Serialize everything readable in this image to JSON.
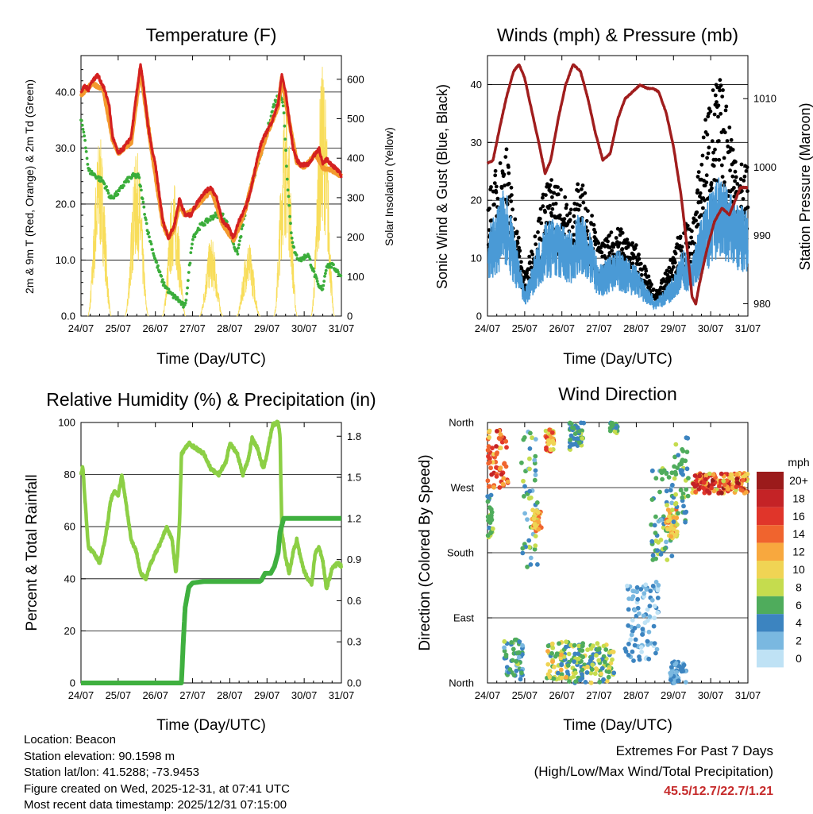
{
  "x_ticks": [
    "24/07",
    "25/07",
    "26/07",
    "27/07",
    "28/07",
    "29/07",
    "30/07",
    "31/07"
  ],
  "x_label": "Time (Day/UTC)",
  "colors": {
    "t2m": "#d42020",
    "t9m": "#f39a2e",
    "td": "#3aad3a",
    "solar": "#f8dd5a",
    "wind": "#4a9ad6",
    "gust": "#000000",
    "pressure": "#a01d1d",
    "rh": "#8ccf45",
    "precip": "#3fb03f"
  },
  "chart_data": [
    {
      "type": "line",
      "title": "Temperature (F)",
      "ylabel": "2m & 9m T (Red, Orange) & 2m Td (Green)",
      "y2label": "Solar Insolation (Yellow)",
      "ylim": [
        0,
        46.5
      ],
      "y_ticks": [
        "0.0",
        "10.0",
        "20.0",
        "30.0",
        "40.0"
      ],
      "y2lim": [
        0,
        660
      ],
      "y2_ticks": [
        "0",
        "100",
        "200",
        "300",
        "400",
        "500",
        "600"
      ],
      "xlim": [
        0,
        7
      ],
      "series": [
        {
          "name": "2m T",
          "x": [
            0,
            0.1,
            0.2,
            0.3,
            0.45,
            0.6,
            0.75,
            0.85,
            1.0,
            1.15,
            1.35,
            1.5,
            1.6,
            1.7,
            1.8,
            1.9,
            2.0,
            2.1,
            2.2,
            2.35,
            2.5,
            2.65,
            2.8,
            2.95,
            3.1,
            3.3,
            3.5,
            3.65,
            3.8,
            3.95,
            4.1,
            4.25,
            4.4,
            4.55,
            4.7,
            4.85,
            5.0,
            5.15,
            5.3,
            5.4,
            5.5,
            5.6,
            5.7,
            5.8,
            5.9,
            6.0,
            6.1,
            6.2,
            6.3,
            6.4,
            6.5,
            6.6,
            6.75,
            6.9,
            7.0
          ],
          "y": [
            40,
            41,
            40.5,
            42,
            43,
            41,
            38,
            32,
            29,
            30,
            32,
            40,
            45,
            40,
            34,
            30,
            27,
            22,
            17,
            14,
            16,
            21,
            18,
            18,
            20,
            22,
            23,
            21,
            17,
            16,
            14,
            17,
            19,
            22,
            27,
            31,
            33,
            35,
            38,
            43,
            40,
            35,
            30,
            28,
            27,
            27,
            27,
            28,
            29,
            30,
            27,
            28,
            27,
            26,
            25
          ]
        },
        {
          "name": "9m T",
          "x": [
            0,
            0.3,
            0.6,
            0.85,
            1.0,
            1.35,
            1.6,
            1.9,
            2.2,
            2.35,
            2.5,
            2.65,
            2.8,
            3.1,
            3.5,
            3.8,
            4.1,
            4.4,
            4.7,
            5.0,
            5.3,
            5.4,
            5.6,
            5.8,
            6.0,
            6.3,
            6.5,
            6.75,
            7.0
          ],
          "y": [
            39.5,
            41.5,
            40.5,
            31.5,
            29,
            31,
            44,
            29.5,
            16.5,
            14,
            15.5,
            20,
            18,
            19.5,
            22.5,
            16.5,
            13.5,
            18.5,
            26.5,
            32.5,
            37.5,
            42.5,
            34.5,
            27.5,
            26.5,
            29,
            26.5,
            26,
            25
          ]
        },
        {
          "name": "2m Td",
          "x": [
            0,
            0.1,
            0.2,
            0.4,
            0.6,
            0.8,
            1.0,
            1.2,
            1.4,
            1.55,
            1.65,
            1.8,
            2.0,
            2.2,
            2.4,
            2.6,
            2.8,
            3.0,
            3.2,
            3.4,
            3.6,
            3.8,
            3.9,
            4.0,
            4.2,
            4.4,
            4.6,
            4.8,
            5.0,
            5.2,
            5.35,
            5.45,
            5.55,
            5.65,
            5.75,
            5.9,
            6.1,
            6.25,
            6.4,
            6.5,
            6.6,
            6.75,
            6.9,
            7.0
          ],
          "y": [
            35,
            32,
            26,
            25,
            24,
            21,
            22,
            24,
            25,
            25,
            21,
            15,
            10,
            6,
            4,
            3,
            1.5,
            14,
            16,
            17,
            18,
            18,
            17,
            15,
            11,
            18,
            24,
            28,
            33,
            38,
            40,
            37,
            24,
            15,
            11,
            10,
            11,
            8,
            5,
            5,
            9,
            9,
            8,
            7
          ]
        }
      ],
      "solar": {
        "name": "Solar Insolation",
        "peaks": [
          [
            0.5,
            460
          ],
          [
            1.5,
            420
          ],
          [
            2.5,
            340
          ],
          [
            3.5,
            200
          ],
          [
            4.5,
            190
          ],
          [
            5.5,
            560
          ],
          [
            6.5,
            640
          ]
        ]
      }
    },
    {
      "type": "line",
      "title": "Winds (mph) & Pressure (mb)",
      "ylabel": "Sonic Wind & Gust (Blue, Black)",
      "y2label": "Station Pressure (Maroon)",
      "ylim": [
        0,
        45
      ],
      "y_ticks": [
        "0",
        "10",
        "20",
        "30",
        "40"
      ],
      "y2lim": [
        978.2,
        1016.3
      ],
      "y2_ticks": [
        "980",
        "990",
        "1000",
        "1010"
      ],
      "xlim": [
        0,
        7
      ],
      "series": [
        {
          "name": "Sonic Wind",
          "x": [
            0,
            0.25,
            0.5,
            0.75,
            1.0,
            1.25,
            1.5,
            1.75,
            2.0,
            2.25,
            2.5,
            2.75,
            3.0,
            3.25,
            3.5,
            3.75,
            4.0,
            4.25,
            4.5,
            4.75,
            5.0,
            5.25,
            5.5,
            5.75,
            6.0,
            6.25,
            6.5,
            6.75,
            7.0
          ],
          "y": [
            10,
            13,
            16,
            9,
            3,
            7,
            11,
            12,
            11,
            10,
            13,
            10,
            6,
            7,
            8,
            7,
            6,
            4,
            2,
            3,
            5,
            8,
            7,
            12,
            15,
            17,
            15,
            13,
            14
          ]
        },
        {
          "name": "Gust",
          "x": [
            0,
            0.25,
            0.5,
            0.75,
            1.0,
            1.25,
            1.5,
            1.75,
            2.0,
            2.25,
            2.5,
            2.75,
            3.0,
            3.25,
            3.5,
            3.75,
            4.0,
            4.25,
            4.5,
            4.75,
            5.0,
            5.25,
            5.5,
            5.75,
            6.0,
            6.25,
            6.5,
            6.75,
            7.0
          ],
          "y": [
            15,
            19,
            22,
            13,
            5,
            10,
            16,
            18,
            16,
            14,
            18,
            14,
            9,
            10,
            12,
            10,
            9,
            6,
            3,
            5,
            8,
            12,
            11,
            22,
            29,
            30,
            26,
            20,
            19
          ]
        },
        {
          "name": "Station Pressure",
          "x": [
            0,
            0.15,
            0.3,
            0.5,
            0.7,
            0.85,
            1.0,
            1.2,
            1.4,
            1.55,
            1.7,
            1.9,
            2.1,
            2.3,
            2.5,
            2.7,
            2.9,
            3.1,
            3.3,
            3.5,
            3.7,
            3.9,
            4.1,
            4.3,
            4.45,
            4.6,
            4.8,
            5.0,
            5.2,
            5.35,
            5.5,
            5.6,
            5.7,
            5.9,
            6.1,
            6.3,
            6.5,
            6.65,
            6.8,
            7.0
          ],
          "y": [
            1000.5,
            1001,
            1005,
            1010,
            1014,
            1015,
            1013,
            1008,
            1003,
            999,
            1001,
            1007,
            1012,
            1015,
            1014,
            1010,
            1005,
            1001,
            1002,
            1007,
            1010,
            1011,
            1012,
            1011.5,
            1011.5,
            1011,
            1008,
            1003,
            996,
            989,
            981,
            980,
            983,
            988,
            992,
            994,
            993,
            995,
            997,
            997
          ]
        }
      ]
    },
    {
      "type": "line",
      "title": "Relative Humidity (%) & Precipitation (in)",
      "ylabel": "Percent & Total Rainfall",
      "ylim": [
        0,
        100
      ],
      "y_ticks": [
        "0",
        "20",
        "40",
        "60",
        "80",
        "100"
      ],
      "y2lim": [
        0,
        1.9
      ],
      "y2_ticks": [
        "0.0",
        "0.3",
        "0.6",
        "0.9",
        "1.2",
        "1.5",
        "1.8"
      ],
      "xlim": [
        0,
        7
      ],
      "series": [
        {
          "name": "Relative Humidity",
          "x": [
            0,
            0.05,
            0.1,
            0.2,
            0.35,
            0.5,
            0.65,
            0.8,
            0.9,
            1.0,
            1.1,
            1.2,
            1.35,
            1.5,
            1.6,
            1.75,
            1.85,
            2.0,
            2.15,
            2.3,
            2.45,
            2.55,
            2.6,
            2.65,
            2.7,
            2.9,
            3.1,
            3.3,
            3.5,
            3.7,
            3.9,
            4.0,
            4.2,
            4.35,
            4.5,
            4.6,
            4.75,
            4.9,
            5.0,
            5.15,
            5.3,
            5.35,
            5.4,
            5.5,
            5.6,
            5.7,
            5.8,
            5.9,
            6.0,
            6.1,
            6.2,
            6.3,
            6.4,
            6.5,
            6.6,
            6.75,
            6.9,
            7.0
          ],
          "y": [
            80,
            83,
            72,
            52,
            50,
            46,
            55,
            70,
            74,
            72,
            80,
            70,
            55,
            50,
            42,
            40,
            45,
            50,
            54,
            60,
            55,
            42,
            50,
            62,
            88,
            92,
            90,
            88,
            82,
            80,
            85,
            92,
            88,
            80,
            86,
            94,
            90,
            82,
            88,
            99,
            100,
            95,
            58,
            48,
            42,
            50,
            55,
            48,
            43,
            40,
            38,
            50,
            52,
            47,
            36,
            44,
            46,
            45
          ]
        },
        {
          "name": "Total Precipitation",
          "x": [
            0,
            2.7,
            2.75,
            2.8,
            2.9,
            3.0,
            3.3,
            3.6,
            4.0,
            4.4,
            4.8,
            4.85,
            4.95,
            5.1,
            5.2,
            5.3,
            5.35,
            5.45,
            5.6,
            6.0,
            6.5,
            7.0
          ],
          "y": [
            0,
            0,
            0.3,
            0.55,
            0.7,
            0.73,
            0.74,
            0.74,
            0.74,
            0.74,
            0.74,
            0.75,
            0.8,
            0.8,
            0.85,
            0.95,
            1.1,
            1.2,
            1.2,
            1.2,
            1.2,
            1.2
          ]
        }
      ]
    },
    {
      "type": "scatter",
      "title": "Wind Direction",
      "ylabel": "Direction (Colored By Speed)",
      "y_ticks": [
        "North",
        "East",
        "South",
        "West",
        "North"
      ],
      "ylim": [
        0,
        360
      ],
      "xlim": [
        0,
        7
      ],
      "colorbar": {
        "unit": "mph",
        "labels": [
          "20+",
          "18",
          "16",
          "14",
          "12",
          "10",
          "8",
          "6",
          "4",
          "2",
          "0"
        ],
        "colors": [
          "#9b1b1b",
          "#c42326",
          "#e0352a",
          "#f0642e",
          "#f8a83e",
          "#f0d454",
          "#c5dc4e",
          "#4fac5c",
          "#3c84c0",
          "#7ab8e0",
          "#bfe2f5"
        ]
      },
      "clusters": [
        {
          "x": [
            0,
            0.55
          ],
          "y": [
            270,
            350
          ],
          "speed": [
            10,
            18
          ]
        },
        {
          "x": [
            0.0,
            0.15
          ],
          "y": [
            200,
            260
          ],
          "speed": [
            4,
            8
          ]
        },
        {
          "x": [
            0.45,
            0.95
          ],
          "y": [
            5,
            60
          ],
          "speed": [
            2,
            8
          ]
        },
        {
          "x": [
            0.9,
            1.35
          ],
          "y": [
            160,
            350
          ],
          "speed": [
            1,
            8
          ]
        },
        {
          "x": [
            1.2,
            1.45
          ],
          "y": [
            210,
            240
          ],
          "speed": [
            8,
            14
          ]
        },
        {
          "x": [
            1.55,
            1.8
          ],
          "y": [
            320,
            350
          ],
          "speed": [
            8,
            16
          ]
        },
        {
          "x": [
            1.6,
            2.3
          ],
          "y": [
            0,
            60
          ],
          "speed": [
            4,
            12
          ]
        },
        {
          "x": [
            2.2,
            2.6
          ],
          "y": [
            320,
            360
          ],
          "speed": [
            3,
            8
          ]
        },
        {
          "x": [
            2.3,
            3.4
          ],
          "y": [
            0,
            55
          ],
          "speed": [
            3,
            10
          ]
        },
        {
          "x": [
            3.3,
            3.5
          ],
          "y": [
            345,
            360
          ],
          "speed": [
            4,
            8
          ]
        },
        {
          "x": [
            3.7,
            4.6
          ],
          "y": [
            30,
            140
          ],
          "speed": [
            0,
            5
          ]
        },
        {
          "x": [
            4.4,
            5.0
          ],
          "y": [
            170,
            300
          ],
          "speed": [
            2,
            8
          ]
        },
        {
          "x": [
            4.8,
            5.1
          ],
          "y": [
            200,
            240
          ],
          "speed": [
            8,
            14
          ]
        },
        {
          "x": [
            4.9,
            5.35
          ],
          "y": [
            0,
            30
          ],
          "speed": [
            1,
            5
          ]
        },
        {
          "x": [
            5.0,
            5.4
          ],
          "y": [
            220,
            345
          ],
          "speed": [
            3,
            8
          ]
        },
        {
          "x": [
            5.5,
            7.0
          ],
          "y": [
            262,
            290
          ],
          "speed": [
            8,
            20
          ]
        }
      ]
    }
  ],
  "info": {
    "location": "Location: Beacon",
    "elevation": "Station elevation: 90.1598 m",
    "latlon": "Station lat/lon: 41.5288; -73.9453",
    "created": "Figure created on Wed, 2025-12-31, at 07:41 UTC",
    "recent": "Most recent data timestamp: 2025/12/31 07:15:00"
  },
  "extremes": {
    "line1": "Extremes For Past 7 Days",
    "line2": "(High/Low/Max Wind/Total Precipitation)",
    "values": "45.5/12.7/22.7/1.21"
  }
}
